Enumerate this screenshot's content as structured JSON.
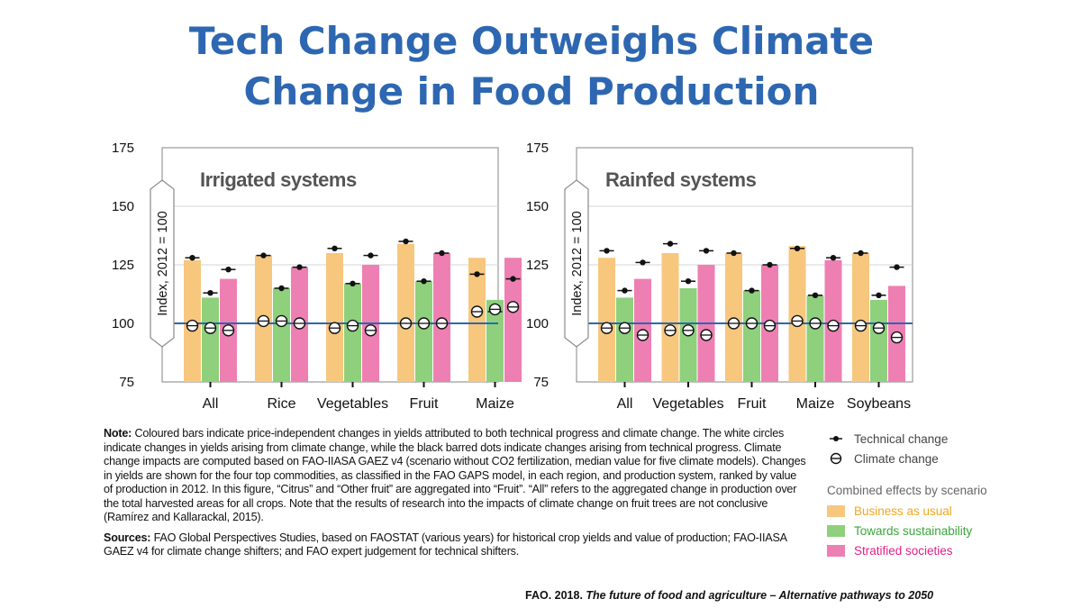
{
  "title": {
    "line1": "Tech Change Outweighs Climate",
    "line2": "Change in Food Production"
  },
  "colors": {
    "title": "#2e67b1",
    "business_as_usual": "#f7c77e",
    "towards_sustainability": "#8ed07c",
    "stratified_societies": "#ee7fb3",
    "baseline": "#2e67b1",
    "legend_bau_text": "#f0a81c",
    "legend_ts_text": "#3aa63a",
    "legend_ss_text": "#e0208a"
  },
  "chart_data": [
    {
      "type": "bar",
      "title": "Irrigated systems",
      "ylabel": "Index, 2012 = 100",
      "ylim": [
        75,
        175
      ],
      "yticks": [
        75,
        100,
        125,
        150,
        175
      ],
      "baseline": 100,
      "categories": [
        "All",
        "Rice",
        "Vegetables",
        "Fruit",
        "Maize"
      ],
      "series": [
        {
          "name": "Business as usual",
          "values": [
            127,
            129,
            130,
            134,
            128
          ]
        },
        {
          "name": "Towards sustainability",
          "values": [
            111,
            115,
            117,
            118,
            110
          ]
        },
        {
          "name": "Stratified societies",
          "values": [
            119,
            124,
            125,
            130,
            128
          ]
        }
      ],
      "technical_change": [
        [
          128,
          113,
          123
        ],
        [
          129,
          115,
          124
        ],
        [
          132,
          117,
          129
        ],
        [
          135,
          118,
          130
        ],
        [
          121,
          105,
          119
        ]
      ],
      "climate_change": [
        [
          99,
          98,
          97
        ],
        [
          101,
          101,
          100
        ],
        [
          98,
          99,
          97
        ],
        [
          100,
          100,
          100
        ],
        [
          105,
          106,
          107
        ]
      ]
    },
    {
      "type": "bar",
      "title": "Rainfed systems",
      "ylabel": "Index, 2012 = 100",
      "ylim": [
        75,
        175
      ],
      "yticks": [
        75,
        100,
        125,
        150,
        175
      ],
      "baseline": 100,
      "categories": [
        "All",
        "Vegetables",
        "Fruit",
        "Maize",
        "Soybeans"
      ],
      "series": [
        {
          "name": "Business as usual",
          "values": [
            128,
            130,
            130,
            133,
            130
          ]
        },
        {
          "name": "Towards sustainability",
          "values": [
            111,
            115,
            114,
            112,
            110
          ]
        },
        {
          "name": "Stratified societies",
          "values": [
            119,
            125,
            125,
            127,
            116
          ]
        }
      ],
      "technical_change": [
        [
          131,
          114,
          126
        ],
        [
          134,
          118,
          131
        ],
        [
          130,
          114,
          125
        ],
        [
          132,
          112,
          128
        ],
        [
          130,
          112,
          124
        ]
      ],
      "climate_change": [
        [
          98,
          98,
          95
        ],
        [
          97,
          97,
          95
        ],
        [
          100,
          100,
          99
        ],
        [
          101,
          100,
          99
        ],
        [
          99,
          98,
          94
        ]
      ]
    }
  ],
  "note": {
    "label": "Note:",
    "text": " Coloured bars indicate price-independent changes in yields attributed to both technical progress and climate change. The white circles indicate changes in yields arising from climate change, while the black barred dots indicate changes arising from technical progress. Climate change impacts are computed based on FAO-IIASA GAEZ v4 (scenario without CO2 fertilization, median value for five climate models). Changes in yields are shown for the four top commodities, as classified in the FAO GAPS model, in each region, and production system, ranked by value of production in 2012. In this figure, “Citrus” and “Other fruit” are aggregated into “Fruit”. “All” refers to the aggregated change in production over the total harvested areas for all crops. Note that the results of research into the impacts of climate change on fruit trees are not conclusive (Ramírez and Kallarackal, 2015)."
  },
  "sources": {
    "label": "Sources:",
    "text": " FAO Global Perspectives Studies, based on FAOSTAT (various years) for historical crop yields and value of production; FAO-IIASA GAEZ v4 for climate change shifters; and FAO expert judgement for technical shifters."
  },
  "legend": {
    "technical_change": "Technical change",
    "climate_change": "Climate change",
    "combined_heading": "Combined effects by scenario",
    "business_as_usual": "Business as usual",
    "towards_sustainability": "Towards sustainability",
    "stratified_societies": "Stratified societies"
  },
  "credit": {
    "prefix": "FAO. 2018. ",
    "title": "The future of food and agriculture – Alternative pathways to 2050"
  }
}
